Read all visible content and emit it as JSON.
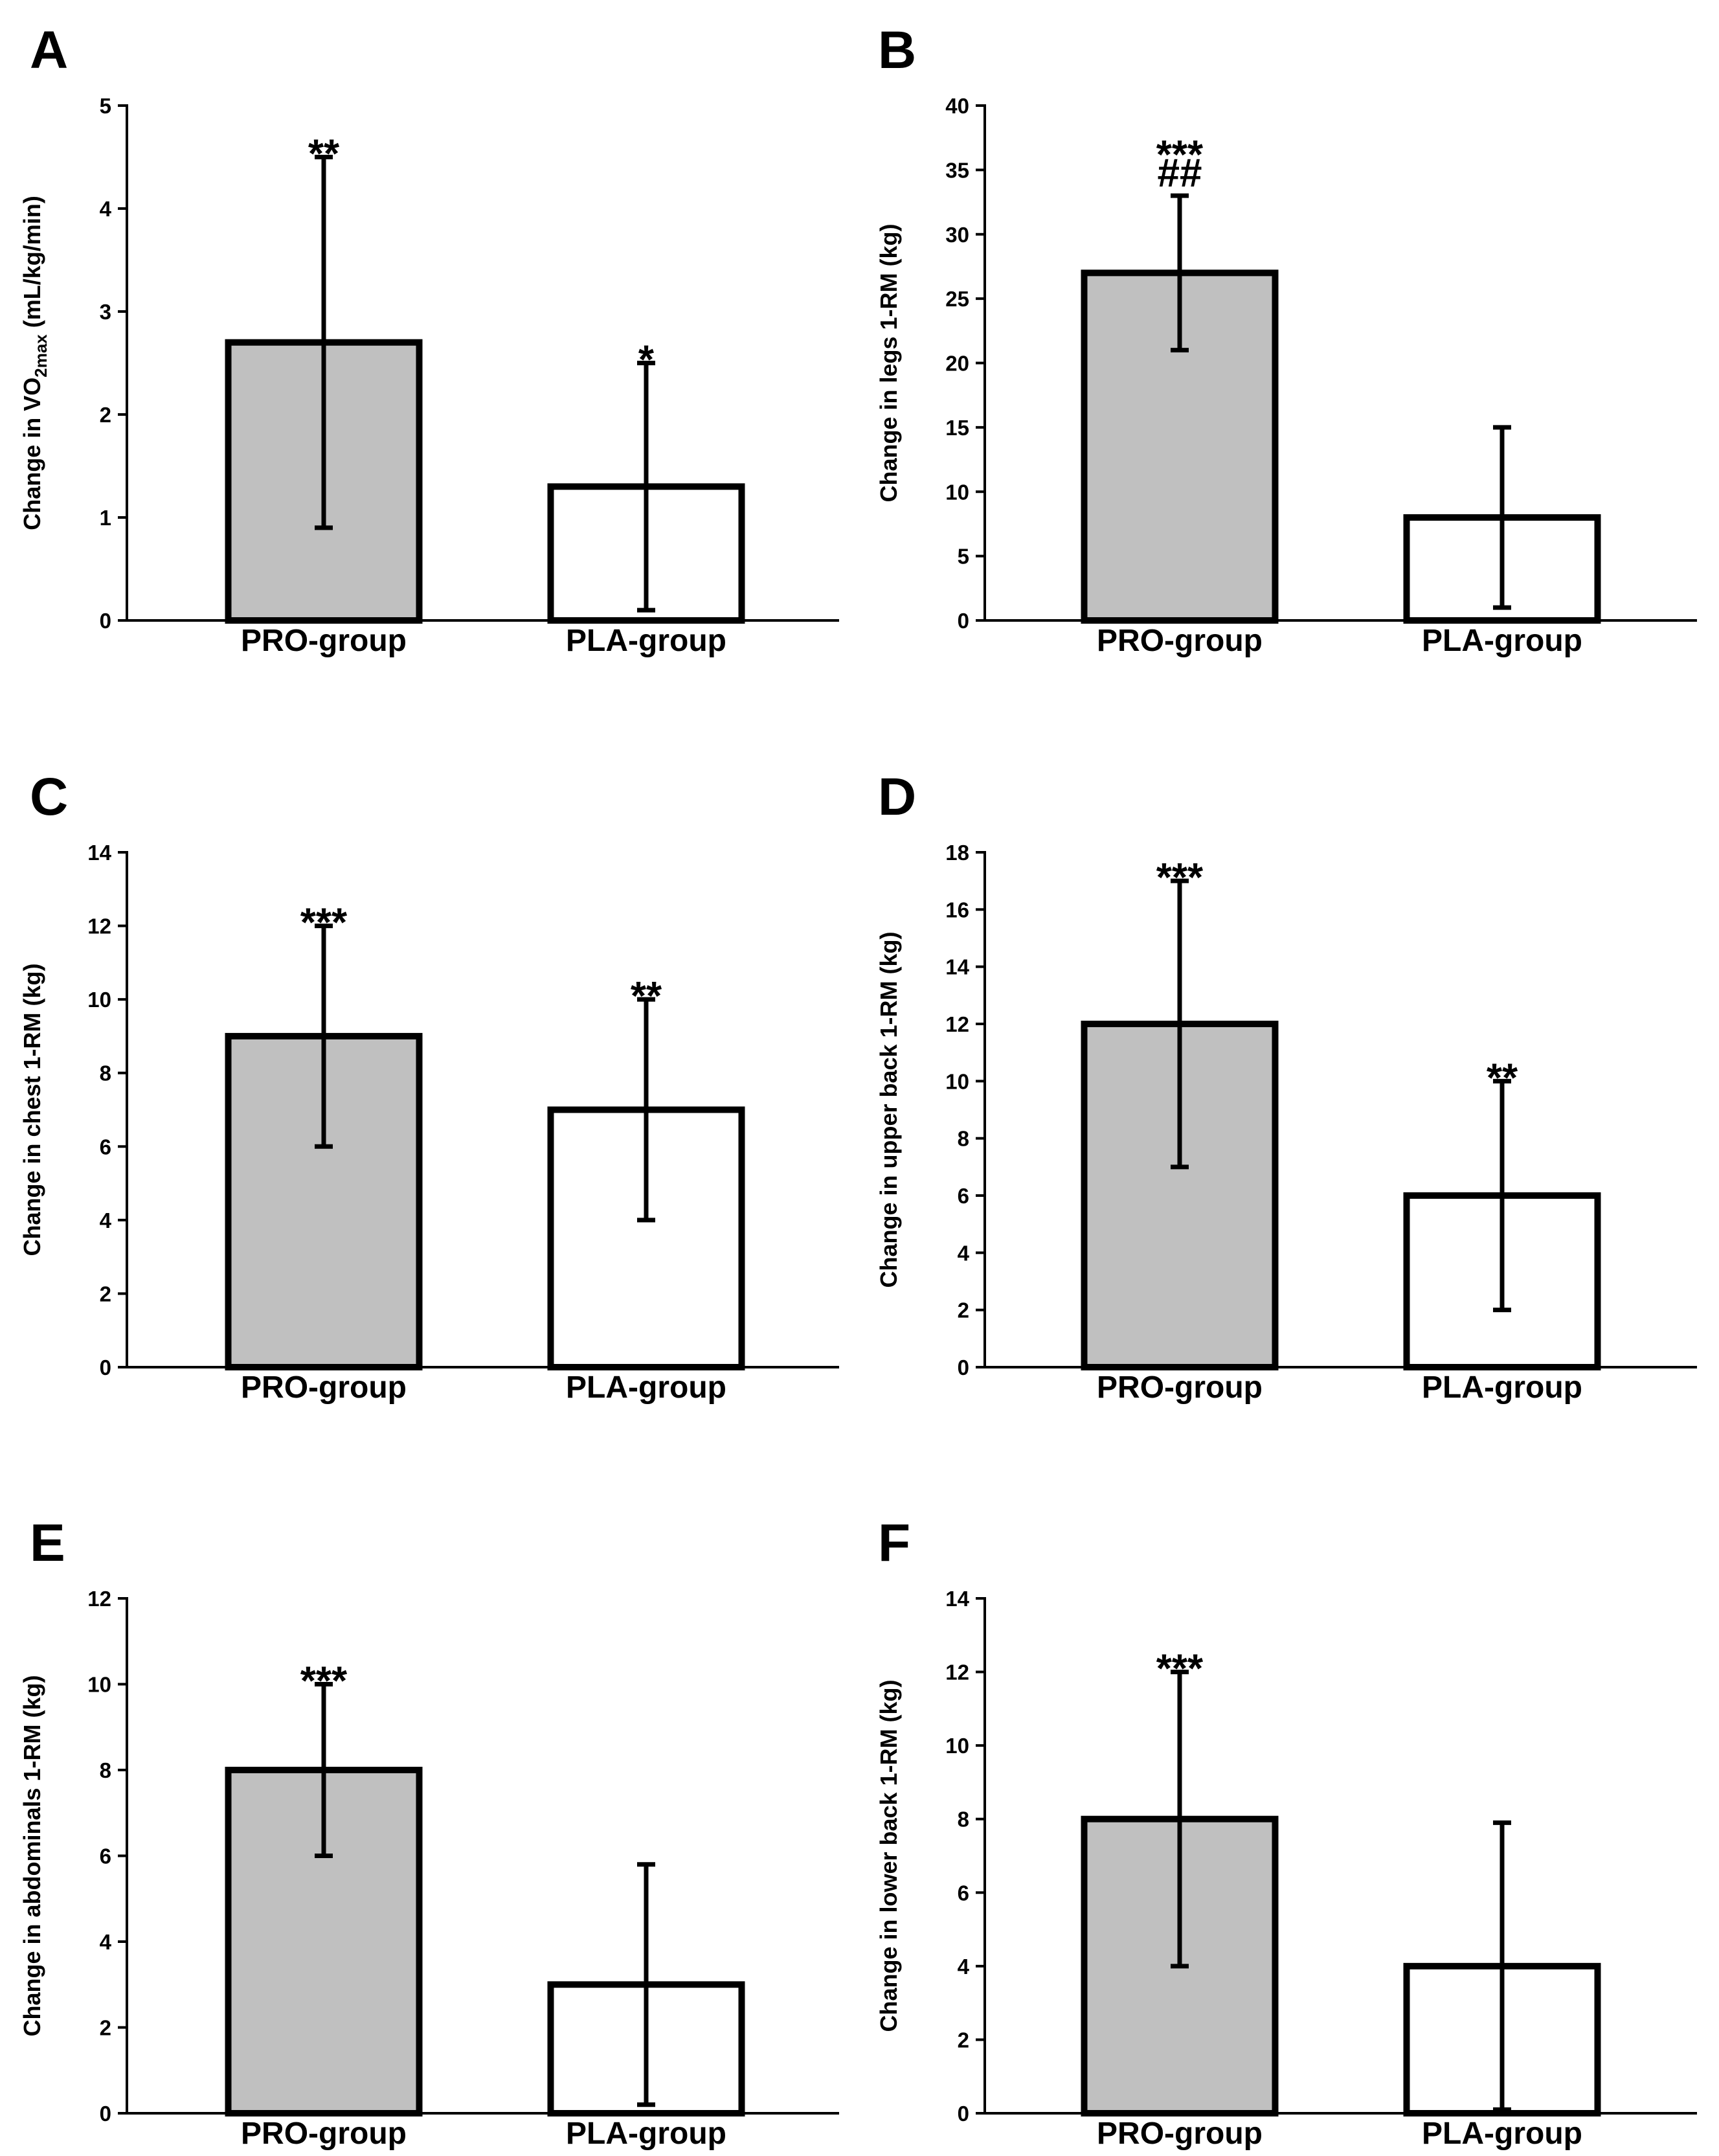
{
  "figure": {
    "background": "#ffffff",
    "pro_bar_color": "#c0c0c0",
    "pla_bar_color": "#ffffff",
    "stroke_color": "#000000"
  },
  "chart_data": [
    {
      "panel": "A",
      "type": "bar",
      "categories": [
        "PRO-group",
        "PLA-group"
      ],
      "values": [
        2.7,
        1.3
      ],
      "error_upper": [
        4.5,
        2.5
      ],
      "error_lower": [
        0.9,
        0.1
      ],
      "annotations": [
        [
          "**"
        ],
        [
          "*"
        ]
      ],
      "ylabel": {
        "pre": "Change in VO",
        "sub": "2max",
        "post": " (mL/kg/min)"
      },
      "ylim": [
        0,
        5
      ],
      "yticks": [
        0,
        1,
        2,
        3,
        4,
        5
      ],
      "grid": false
    },
    {
      "panel": "B",
      "type": "bar",
      "categories": [
        "PRO-group",
        "PLA-group"
      ],
      "values": [
        27,
        8
      ],
      "error_upper": [
        33,
        15
      ],
      "error_lower": [
        21,
        1
      ],
      "annotations": [
        [
          "***",
          "##"
        ],
        []
      ],
      "ylabel": {
        "pre": "Change in legs 1-RM (kg)",
        "sub": "",
        "post": ""
      },
      "ylim": [
        0,
        40
      ],
      "yticks": [
        0,
        5,
        10,
        15,
        20,
        25,
        30,
        35,
        40
      ],
      "grid": false
    },
    {
      "panel": "C",
      "type": "bar",
      "categories": [
        "PRO-group",
        "PLA-group"
      ],
      "values": [
        9,
        7
      ],
      "error_upper": [
        12,
        10
      ],
      "error_lower": [
        6,
        4
      ],
      "annotations": [
        [
          "***"
        ],
        [
          "**"
        ]
      ],
      "ylabel": {
        "pre": "Change in chest 1-RM (kg)",
        "sub": "",
        "post": ""
      },
      "ylim": [
        0,
        14
      ],
      "yticks": [
        0,
        2,
        4,
        6,
        8,
        10,
        12,
        14
      ],
      "grid": false
    },
    {
      "panel": "D",
      "type": "bar",
      "categories": [
        "PRO-group",
        "PLA-group"
      ],
      "values": [
        12,
        6
      ],
      "error_upper": [
        17,
        10
      ],
      "error_lower": [
        7,
        2
      ],
      "annotations": [
        [
          "***"
        ],
        [
          "**"
        ]
      ],
      "ylabel": {
        "pre": "Change in upper back 1-RM (kg)",
        "sub": "",
        "post": ""
      },
      "ylim": [
        0,
        18
      ],
      "yticks": [
        0,
        2,
        4,
        6,
        8,
        10,
        12,
        14,
        16,
        18
      ],
      "grid": false
    },
    {
      "panel": "E",
      "type": "bar",
      "categories": [
        "PRO-group",
        "PLA-group"
      ],
      "values": [
        8,
        3
      ],
      "error_upper": [
        10,
        5.8
      ],
      "error_lower": [
        6,
        0.2
      ],
      "annotations": [
        [
          "***"
        ],
        []
      ],
      "ylabel": {
        "pre": "Change in abdominals 1-RM (kg)",
        "sub": "",
        "post": ""
      },
      "ylim": [
        0,
        12
      ],
      "yticks": [
        0,
        2,
        4,
        6,
        8,
        10,
        12
      ],
      "grid": false
    },
    {
      "panel": "F",
      "type": "bar",
      "categories": [
        "PRO-group",
        "PLA-group"
      ],
      "values": [
        8,
        4
      ],
      "error_upper": [
        12,
        7.9
      ],
      "error_lower": [
        4,
        0.1
      ],
      "annotations": [
        [
          "***"
        ],
        []
      ],
      "ylabel": {
        "pre": "Change in lower back 1-RM (kg)",
        "sub": "",
        "post": ""
      },
      "ylim": [
        0,
        14
      ],
      "yticks": [
        0,
        2,
        4,
        6,
        8,
        10,
        12,
        14
      ],
      "grid": false
    }
  ]
}
